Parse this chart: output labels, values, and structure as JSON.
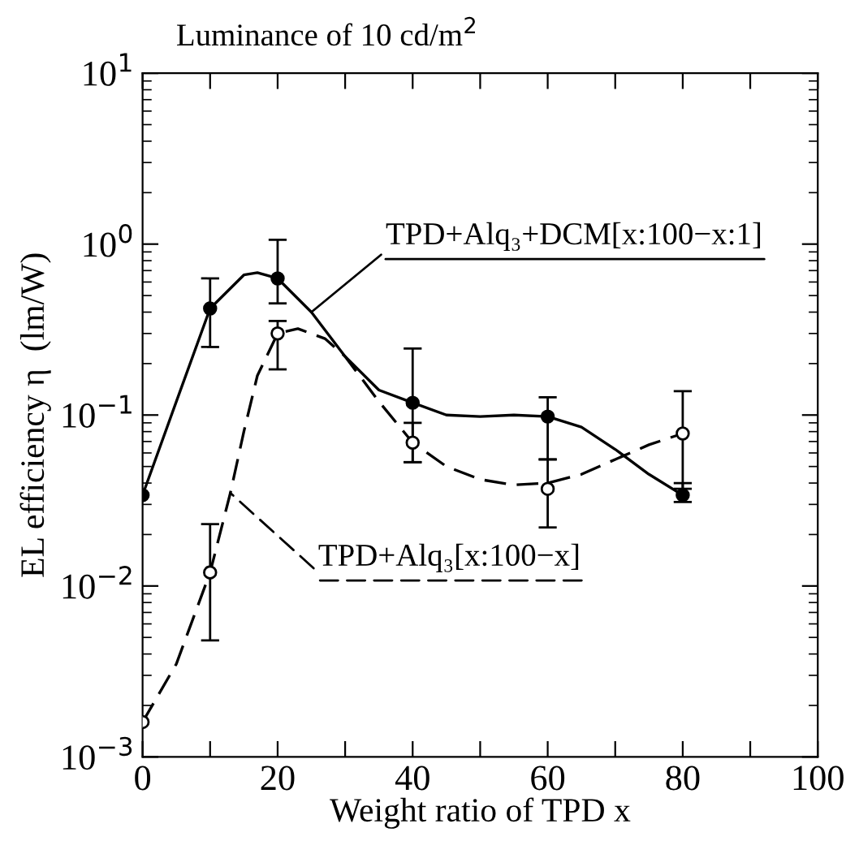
{
  "chart_data": {
    "type": "scatter",
    "title": "Luminance of 10 cd/m$^{2}$",
    "xlabel": "Weight ratio of TPD x",
    "ylabel": "EL efficiency η  (lm/W)",
    "log": "y",
    "grid": false,
    "xlim": [
      0,
      100
    ],
    "ylim": [
      0.001,
      10
    ],
    "xticks": [
      0,
      {
        "value": 10,
        "label": null
      },
      20,
      {
        "value": 30,
        "label": null
      },
      40,
      {
        "value": 50,
        "label": null
      },
      60,
      {
        "value": 70,
        "label": null
      },
      80,
      {
        "value": 90,
        "label": null
      },
      100
    ],
    "yticks": [
      {
        "value": 0.001,
        "label": "10$^{−3}$"
      },
      {
        "value": 0.01,
        "label": "10$^{−2}$"
      },
      {
        "value": 0.1,
        "label": "10$^{−1}$"
      },
      {
        "value": 1,
        "label": "10$^{0}$"
      },
      {
        "value": 10,
        "label": "10$^{1}$"
      }
    ],
    "series": [
      {
        "color": "#000000",
        "marker": "circle",
        "x": [
          0,
          10,
          20,
          40,
          60,
          80
        ],
        "values": [
          0.034,
          0.42,
          0.63,
          0.118,
          0.098,
          0.034
        ],
        "errors": [
          null,
          [
            0.25,
            0.63
          ],
          [
            0.45,
            1.06
          ],
          [
            0.053,
            0.245
          ],
          [
            0.055,
            0.127
          ],
          [
            0.031,
            0.04
          ]
        ]
      },
      {
        "color": "#ffffff",
        "marker": "circle",
        "x": [
          0,
          10,
          20,
          40,
          60,
          80
        ],
        "values": [
          0.0016,
          0.012,
          0.3,
          0.069,
          0.037,
          0.078
        ],
        "errors": [
          null,
          [
            0.0048,
            0.023
          ],
          [
            0.185,
            0.355
          ],
          [
            0.053,
            0.09
          ],
          [
            0.022,
            0.055
          ],
          [
            0.037,
            0.138
          ]
        ]
      },
      {
        "type": "line",
        "color": "#000000",
        "line_style": "solid",
        "x": [
          0,
          5,
          10,
          15,
          17,
          20,
          25,
          30,
          35,
          40,
          45,
          50,
          55,
          60,
          65,
          70,
          75,
          80
        ],
        "values": [
          0.034,
          0.12,
          0.42,
          0.66,
          0.68,
          0.63,
          0.4,
          0.22,
          0.14,
          0.118,
          0.1,
          0.098,
          0.1,
          0.098,
          0.085,
          0.063,
          0.045,
          0.034
        ]
      },
      {
        "type": "line",
        "color": "#000000",
        "line_style": "dashed",
        "x": [
          0,
          5,
          10,
          13,
          15,
          17,
          20,
          23,
          27,
          30,
          35,
          40,
          45,
          50,
          55,
          60,
          65,
          70,
          75,
          80
        ],
        "values": [
          0.0016,
          0.0035,
          0.012,
          0.035,
          0.08,
          0.17,
          0.3,
          0.32,
          0.28,
          0.22,
          0.12,
          0.069,
          0.05,
          0.042,
          0.039,
          0.04,
          0.045,
          0.055,
          0.067,
          0.078
        ]
      }
    ],
    "annotations": [
      {
        "text": "TPD+Alq₃+DCM[x:100−x:1]",
        "x": 25,
        "y": 0.4
      },
      {
        "text": "TPD+Alq₃[x:100−x]",
        "x": 13,
        "y": 0.035
      }
    ]
  }
}
